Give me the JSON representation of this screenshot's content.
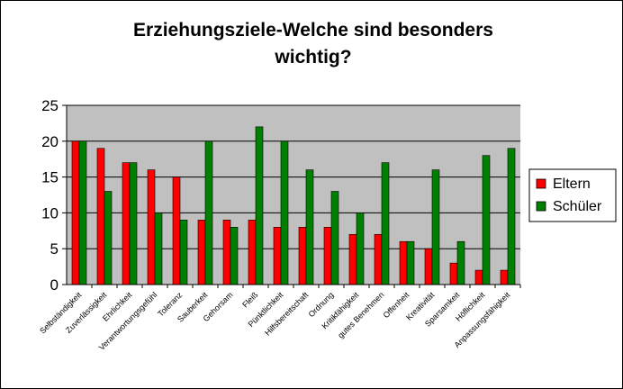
{
  "chart_data": {
    "type": "bar",
    "title_lines": [
      "Erziehungsziele-Welche sind besonders",
      "wichtig?"
    ],
    "categories": [
      "Selbständigkeit",
      "Zuverlässigkeit",
      "Ehrlichkeit",
      "Verantwortungsgefühl",
      "Toleranz",
      "Sauberkeit",
      "Gehorsam",
      "Fleiß",
      "Pünktlichkeit",
      "Hilfsbereitschaft",
      "Ordnung",
      "Kritikfähigkeit",
      "gutes Benehmen",
      "Offenheit",
      "Kreativität",
      "Sparsamkeit",
      "Höflichkeit",
      "Anpassungsfähigkeit"
    ],
    "series": [
      {
        "name": "Eltern",
        "color": "#ff0000",
        "values": [
          20,
          19,
          17,
          16,
          15,
          9,
          9,
          9,
          8,
          8,
          8,
          7,
          7,
          6,
          5,
          3,
          2,
          2
        ]
      },
      {
        "name": "Schüler",
        "color": "#008000",
        "values": [
          20,
          13,
          17,
          10,
          9,
          20,
          8,
          22,
          20,
          16,
          13,
          10,
          17,
          6,
          16,
          6,
          18,
          19
        ]
      }
    ],
    "ylim": [
      0,
      25
    ],
    "yticks": [
      0,
      5,
      10,
      15,
      20,
      25
    ],
    "grid": true,
    "plot_background": "#c0c0c0",
    "legend_position": "right"
  }
}
